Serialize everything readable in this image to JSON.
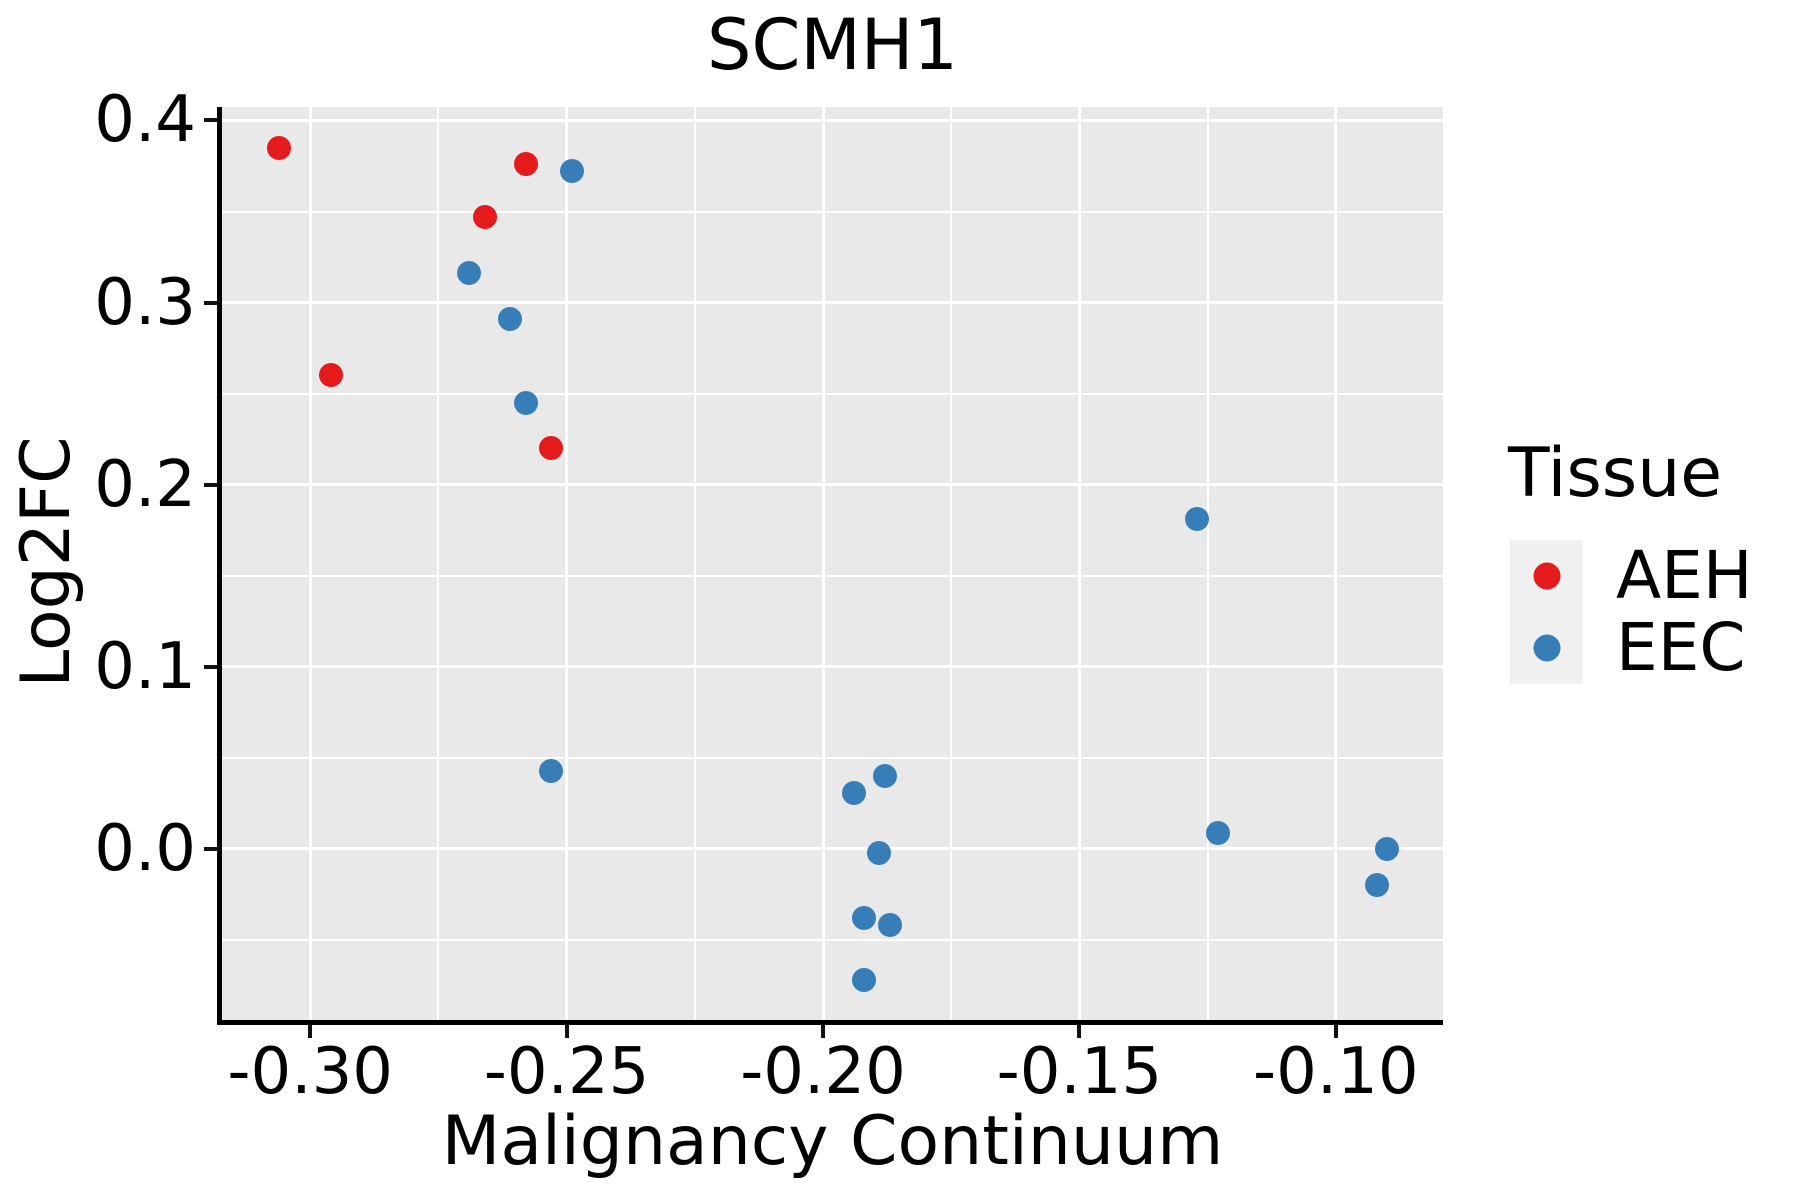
{
  "chart_data": {
    "type": "scatter",
    "title": "SCMH1",
    "xlabel": "Malignancy Continuum",
    "ylabel": "Log2FC",
    "xlim": [
      -0.3172,
      -0.0791
    ],
    "ylim": [
      -0.0939,
      0.4074
    ],
    "grid": "on",
    "panel_bg": "#e9e9e9",
    "gridline_color": "#ffffff",
    "x_ticks": {
      "values": [
        -0.3,
        -0.25,
        -0.2,
        -0.15,
        -0.1
      ],
      "labels": [
        "-0.30",
        "-0.25",
        "-0.20",
        "-0.15",
        "-0.10"
      ]
    },
    "y_ticks": {
      "values": [
        0.0,
        0.1,
        0.2,
        0.3,
        0.4
      ],
      "labels": [
        "0.0",
        "0.1",
        "0.2",
        "0.3",
        "0.4"
      ]
    },
    "x_minor": [
      -0.275,
      -0.225,
      -0.175,
      -0.125
    ],
    "y_minor": [
      -0.05,
      0.05,
      0.15,
      0.25,
      0.35
    ],
    "marker_radius_px": 12,
    "legend": {
      "title": "Tissue",
      "position": "right",
      "entries": [
        {
          "label": "AEH",
          "color": "#e41a1c"
        },
        {
          "label": "EEC",
          "color": "#377eb8"
        }
      ]
    },
    "series": [
      {
        "name": "AEH",
        "color": "#e41a1c",
        "points": [
          [
            -0.306,
            0.385
          ],
          [
            -0.258,
            0.376
          ],
          [
            -0.266,
            0.347
          ],
          [
            -0.296,
            0.26
          ],
          [
            -0.253,
            0.22
          ]
        ]
      },
      {
        "name": "EEC",
        "color": "#377eb8",
        "points": [
          [
            -0.249,
            0.372
          ],
          [
            -0.269,
            0.316
          ],
          [
            -0.261,
            0.291
          ],
          [
            -0.258,
            0.245
          ],
          [
            -0.253,
            0.043
          ],
          [
            -0.188,
            0.04
          ],
          [
            -0.194,
            0.031
          ],
          [
            -0.189,
            -0.002
          ],
          [
            -0.192,
            -0.038
          ],
          [
            -0.187,
            -0.042
          ],
          [
            -0.192,
            -0.072
          ],
          [
            -0.127,
            0.181
          ],
          [
            -0.123,
            0.009
          ],
          [
            -0.09,
            0.0
          ],
          [
            -0.092,
            -0.02
          ]
        ]
      }
    ]
  }
}
